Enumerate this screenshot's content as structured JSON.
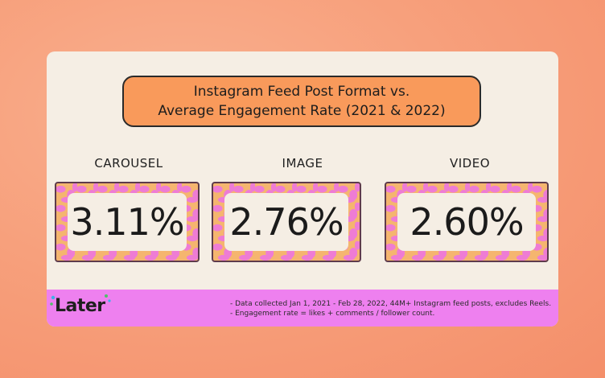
{
  "title": {
    "line1": "Instagram Feed Post Format vs.",
    "line2": "Average Engagement Rate (2021 & 2022)"
  },
  "stats": [
    {
      "label": "CAROUSEL",
      "value": "3.11%"
    },
    {
      "label": "IMAGE",
      "value": "2.76%"
    },
    {
      "label": "VIDEO",
      "value": "2.60%"
    }
  ],
  "footer": {
    "brand": "Later",
    "note1": "- Data collected Jan 1, 2021 - Feb 28, 2022, 44M+ Instagram feed posts, excludes Reels.",
    "note2": "- Engagement rate = likes + comments / follower count."
  },
  "colors": {
    "accent_orange": "#f99a5b",
    "footer_pink": "#ee80ef",
    "card_bg": "#f5eee4"
  }
}
